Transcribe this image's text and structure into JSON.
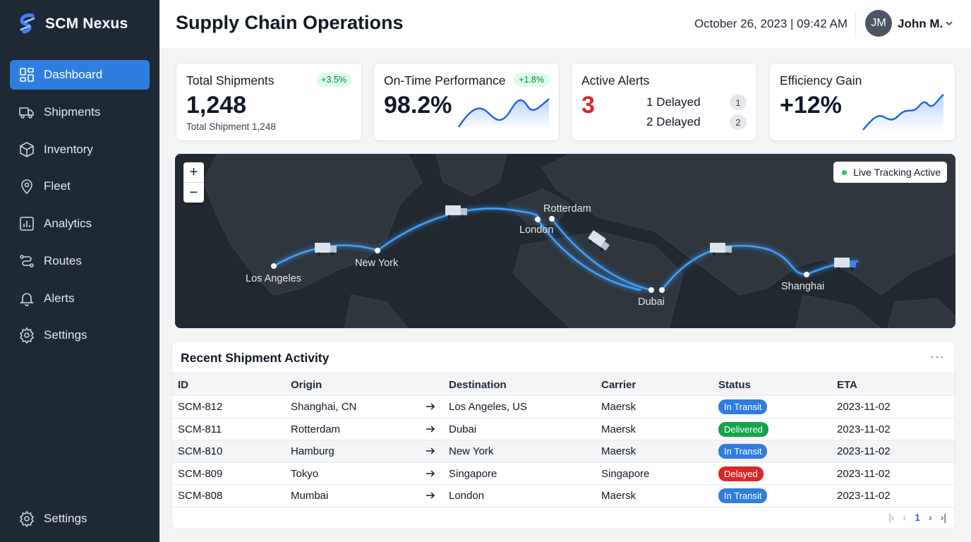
{
  "app": {
    "name": "SCM Nexus",
    "page_title": "Supply Chain Operations",
    "datetime": "October 26, 2023 | 09:42 AM",
    "user": {
      "initials": "JM",
      "name": "John M."
    }
  },
  "sidebar": {
    "items": [
      {
        "label": "Dashboard",
        "icon": "dashboard-icon",
        "active": true
      },
      {
        "label": "Shipments",
        "icon": "truck-icon"
      },
      {
        "label": "Inventory",
        "icon": "box-icon"
      },
      {
        "label": "Fleet",
        "icon": "map-pin-icon"
      },
      {
        "label": "Analytics",
        "icon": "bar-chart-icon"
      },
      {
        "label": "Routes",
        "icon": "route-icon"
      },
      {
        "label": "Alerts",
        "icon": "bell-icon"
      },
      {
        "label": "Settings",
        "icon": "gear-icon"
      }
    ],
    "bottom_item": {
      "label": "Settings",
      "icon": "gear-icon"
    }
  },
  "kpis": {
    "total_shipments": {
      "title": "Total Shipments",
      "value": "1,248",
      "delta": "+3.5%",
      "sub": "Total Shipment 1,248"
    },
    "on_time": {
      "title": "On-Time Performance",
      "value": "98.2%",
      "delta": "+1.8%"
    },
    "alerts": {
      "title": "Active Alerts",
      "value": "3",
      "rows": [
        {
          "label": "1 Delayed",
          "count": "1"
        },
        {
          "label": "2 Delayed",
          "count": "2"
        }
      ]
    },
    "efficiency": {
      "title": "Efficiency Gain",
      "value": "+12%"
    }
  },
  "map": {
    "live_label": "Live Tracking Active",
    "zoom_in": "+",
    "zoom_out": "−",
    "cities": [
      "Los Angeles",
      "New York",
      "London",
      "Rotterdam",
      "Dubai",
      "Shanghai"
    ]
  },
  "table": {
    "title": "Recent Shipment Activity",
    "more": "···",
    "columns": [
      "ID",
      "Origin",
      "Destination",
      "Carrier",
      "Status",
      "ETA"
    ],
    "rows": [
      {
        "id": "SCM-812",
        "origin": "Shanghai, CN",
        "destination": "Los Angeles, US",
        "carrier": "Maersk",
        "status": "In Transit",
        "eta": "2023-11-02"
      },
      {
        "id": "SCM-811",
        "origin": "Rotterdam",
        "destination": "Dubai",
        "carrier": "Maersk",
        "status": "Delivered",
        "eta": "2023-11-02"
      },
      {
        "id": "SCM-810",
        "origin": "Hamburg",
        "destination": "New York",
        "carrier": "Maersk",
        "status": "In Transit",
        "eta": "2023-11-02"
      },
      {
        "id": "SCM-809",
        "origin": "Tokyo",
        "destination": "Singapore",
        "carrier": "Singapore",
        "status": "Delayed",
        "eta": "2023-11-02"
      },
      {
        "id": "SCM-808",
        "origin": "Mumbai",
        "destination": "London",
        "carrier": "Maersk",
        "status": "In Transit",
        "eta": "2023-11-02"
      }
    ],
    "pager": {
      "first": "|‹",
      "prev": "‹",
      "current": "1",
      "next": "›",
      "last": "›|"
    }
  },
  "colors": {
    "sidebar_bg": "#1e2936",
    "accent": "#2f7de0",
    "in_transit": "#2f7de0",
    "delivered": "#16a34a",
    "delayed": "#dc2626",
    "route_glow": "#3ea0ff"
  }
}
